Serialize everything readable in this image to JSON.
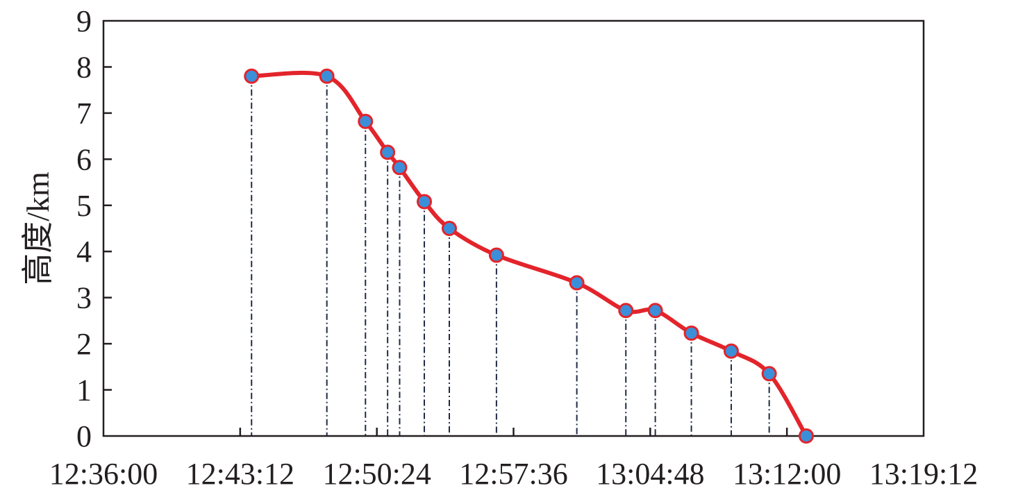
{
  "chart_data": {
    "type": "line",
    "title": "",
    "xlabel": "",
    "ylabel": "高度/km",
    "ylim": [
      0,
      9
    ],
    "xlim": [
      "12:36:00",
      "13:19:12"
    ],
    "x_ticks": [
      "12:36:00",
      "12:43:12",
      "12:50:24",
      "12:57:36",
      "13:04:48",
      "13:12:00",
      "13:19:12"
    ],
    "y_ticks": [
      "0",
      "1",
      "2",
      "3",
      "4",
      "5",
      "6",
      "7",
      "8",
      "9"
    ],
    "grid": false,
    "drop_lines": true,
    "colors": {
      "line": "#e3242b",
      "marker_fill": "#3b8fd9",
      "marker_edge": "#e3242b",
      "drop_line": "#1f2a44",
      "axis": "#231f20"
    },
    "series": [
      {
        "x": [
          "12:43:48",
          "12:47:46",
          "12:49:48",
          "12:50:58",
          "12:51:36",
          "12:52:54",
          "12:54:13",
          "12:56:42",
          "13:00:56",
          "13:03:31",
          "13:05:04",
          "13:06:58",
          "13:09:04",
          "13:11:04",
          "13:13:01"
        ],
        "y": [
          7.8,
          7.8,
          6.82,
          6.15,
          5.82,
          5.08,
          4.5,
          3.92,
          3.32,
          2.72,
          2.72,
          2.23,
          1.84,
          1.35,
          0
        ]
      }
    ]
  }
}
